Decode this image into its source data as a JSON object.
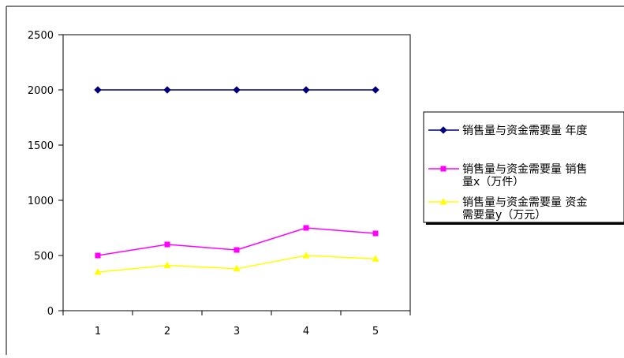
{
  "chart_data": {
    "type": "line",
    "categories": [
      "1",
      "2",
      "3",
      "4",
      "5"
    ],
    "ylim": [
      0,
      2500
    ],
    "yticks": [
      0,
      500,
      1000,
      1500,
      2000,
      2500
    ],
    "grid": false,
    "legend_position": "right",
    "series": [
      {
        "name": "销售量与资金需要量 年度",
        "values": [
          2000,
          2000,
          2000,
          2000,
          2000
        ],
        "color": "#000080",
        "marker": "diamond"
      },
      {
        "name": "销售量与资金需要量 销售量x（万件）",
        "values": [
          500,
          600,
          550,
          750,
          700
        ],
        "color": "#ff00ff",
        "marker": "square"
      },
      {
        "name": "销售量与资金需要量 资金需要量y（万元）",
        "values": [
          350,
          410,
          380,
          500,
          470
        ],
        "color": "#ffff00",
        "marker": "triangle"
      }
    ]
  },
  "legend": {
    "items": [
      {
        "lines": [
          "销售量与资金需要量 年度"
        ]
      },
      {
        "lines": [
          "销售量与资金需要量 销售",
          "量x（万件）"
        ]
      },
      {
        "lines": [
          "销售量与资金需要量 资金",
          "需要量y（万元）"
        ]
      }
    ]
  }
}
